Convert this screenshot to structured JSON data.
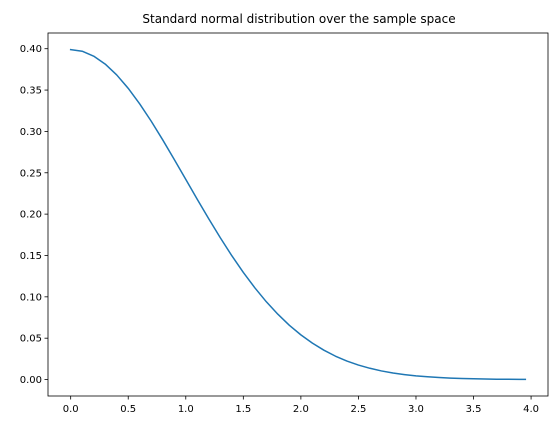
{
  "chart_data": {
    "type": "line",
    "title": "Standard normal distribution over the sample space",
    "xlabel": "",
    "ylabel": "",
    "xlim": [
      -0.197,
      4.147
    ],
    "ylim": [
      -0.0199,
      0.419
    ],
    "grid": false,
    "x_ticks": [
      "0.0",
      "0.5",
      "1.0",
      "1.5",
      "2.0",
      "2.5",
      "3.0",
      "3.5",
      "4.0"
    ],
    "y_ticks": [
      "0.00",
      "0.05",
      "0.10",
      "0.15",
      "0.20",
      "0.25",
      "0.30",
      "0.35",
      "0.40"
    ],
    "series": [
      {
        "color": "#1f77b4",
        "x": [
          0.0,
          0.1,
          0.2,
          0.3,
          0.4,
          0.5,
          0.6,
          0.7,
          0.8,
          0.9,
          1.0,
          1.1,
          1.2,
          1.3,
          1.4,
          1.5,
          1.6,
          1.7,
          1.8,
          1.9,
          2.0,
          2.1,
          2.2,
          2.3,
          2.4,
          2.5,
          2.6,
          2.7,
          2.8,
          2.9,
          3.0,
          3.1,
          3.2,
          3.3,
          3.4,
          3.5,
          3.6,
          3.7,
          3.8,
          3.9,
          3.95
        ],
        "y": [
          0.3989,
          0.397,
          0.391,
          0.3814,
          0.3683,
          0.3521,
          0.3332,
          0.3123,
          0.2897,
          0.2661,
          0.242,
          0.2179,
          0.1942,
          0.1714,
          0.1497,
          0.1295,
          0.1109,
          0.094,
          0.079,
          0.0656,
          0.054,
          0.044,
          0.0355,
          0.0283,
          0.0224,
          0.0175,
          0.0136,
          0.0104,
          0.0079,
          0.006,
          0.0044,
          0.0033,
          0.0024,
          0.0017,
          0.0012,
          0.0009,
          0.0006,
          0.0004,
          0.0003,
          0.0002,
          0.0002
        ]
      }
    ]
  }
}
